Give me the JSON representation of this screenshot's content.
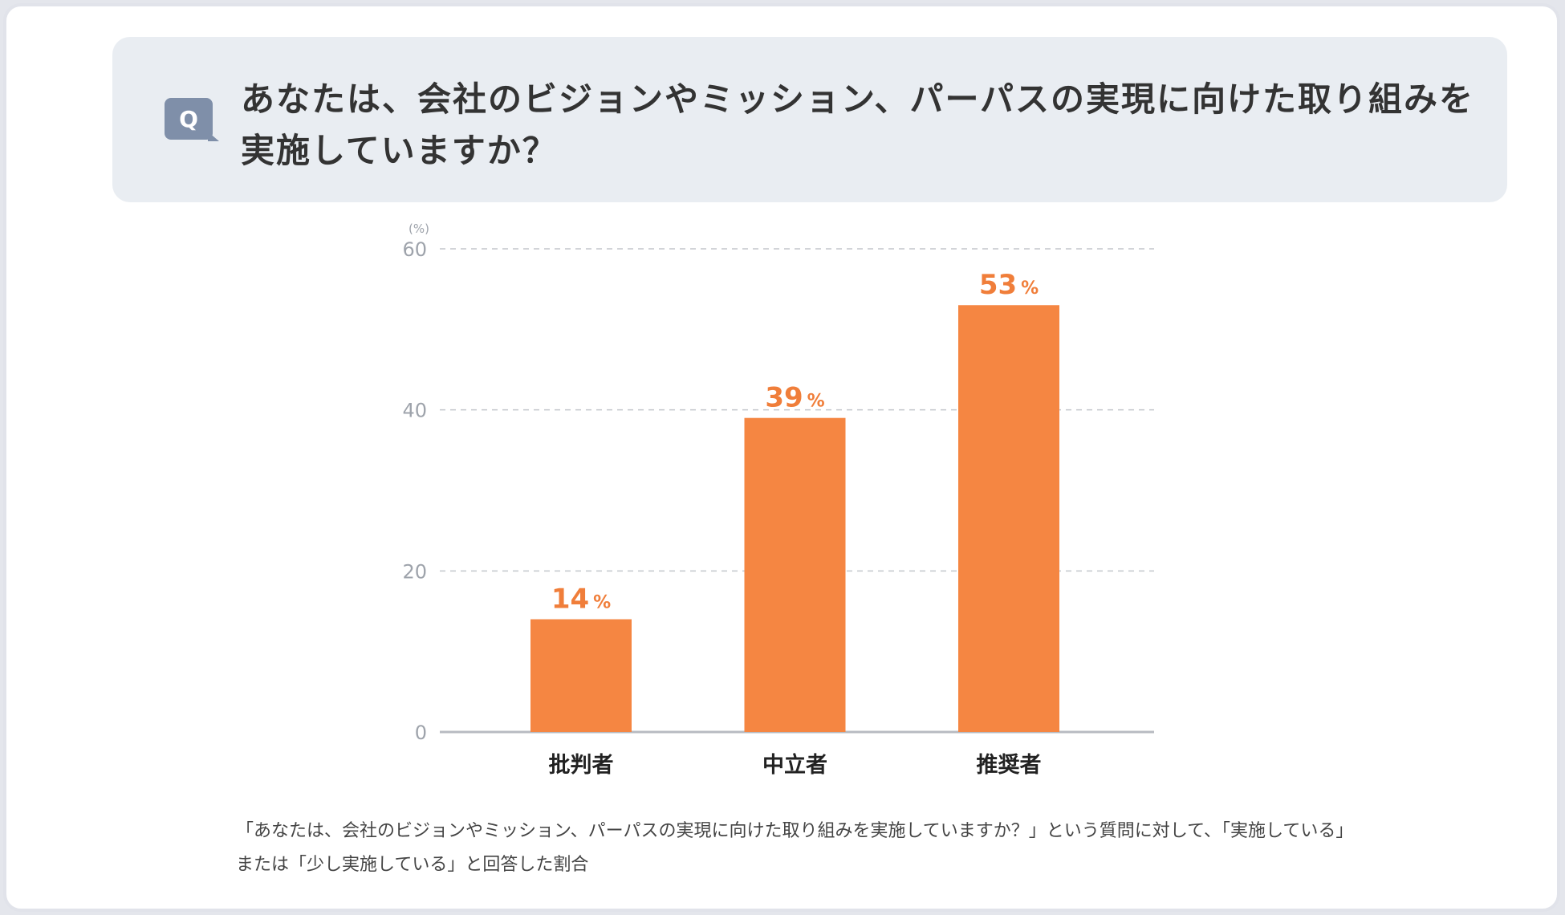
{
  "question": {
    "badge": "Q",
    "text": "あなたは、会社のビジョンやミッション、パーパスの実現に向けた取り組みを実施していますか？"
  },
  "chart_data": {
    "type": "bar",
    "unit_label": "(%)",
    "categories": [
      "批判者",
      "中立者",
      "推奨者"
    ],
    "values": [
      14,
      39,
      53
    ],
    "value_suffix": "%",
    "ylim": [
      0,
      60
    ],
    "yticks": [
      0,
      20,
      40,
      60
    ],
    "grid": true,
    "bar_color": "#f58642",
    "label_color": "#f07e3a"
  },
  "footnote": "「あなたは、会社のビジョンやミッション、パーパスの実現に向けた取り組みを実施していますか？」という質問に対して、「実施している」または「少し実施している」と回答した割合"
}
